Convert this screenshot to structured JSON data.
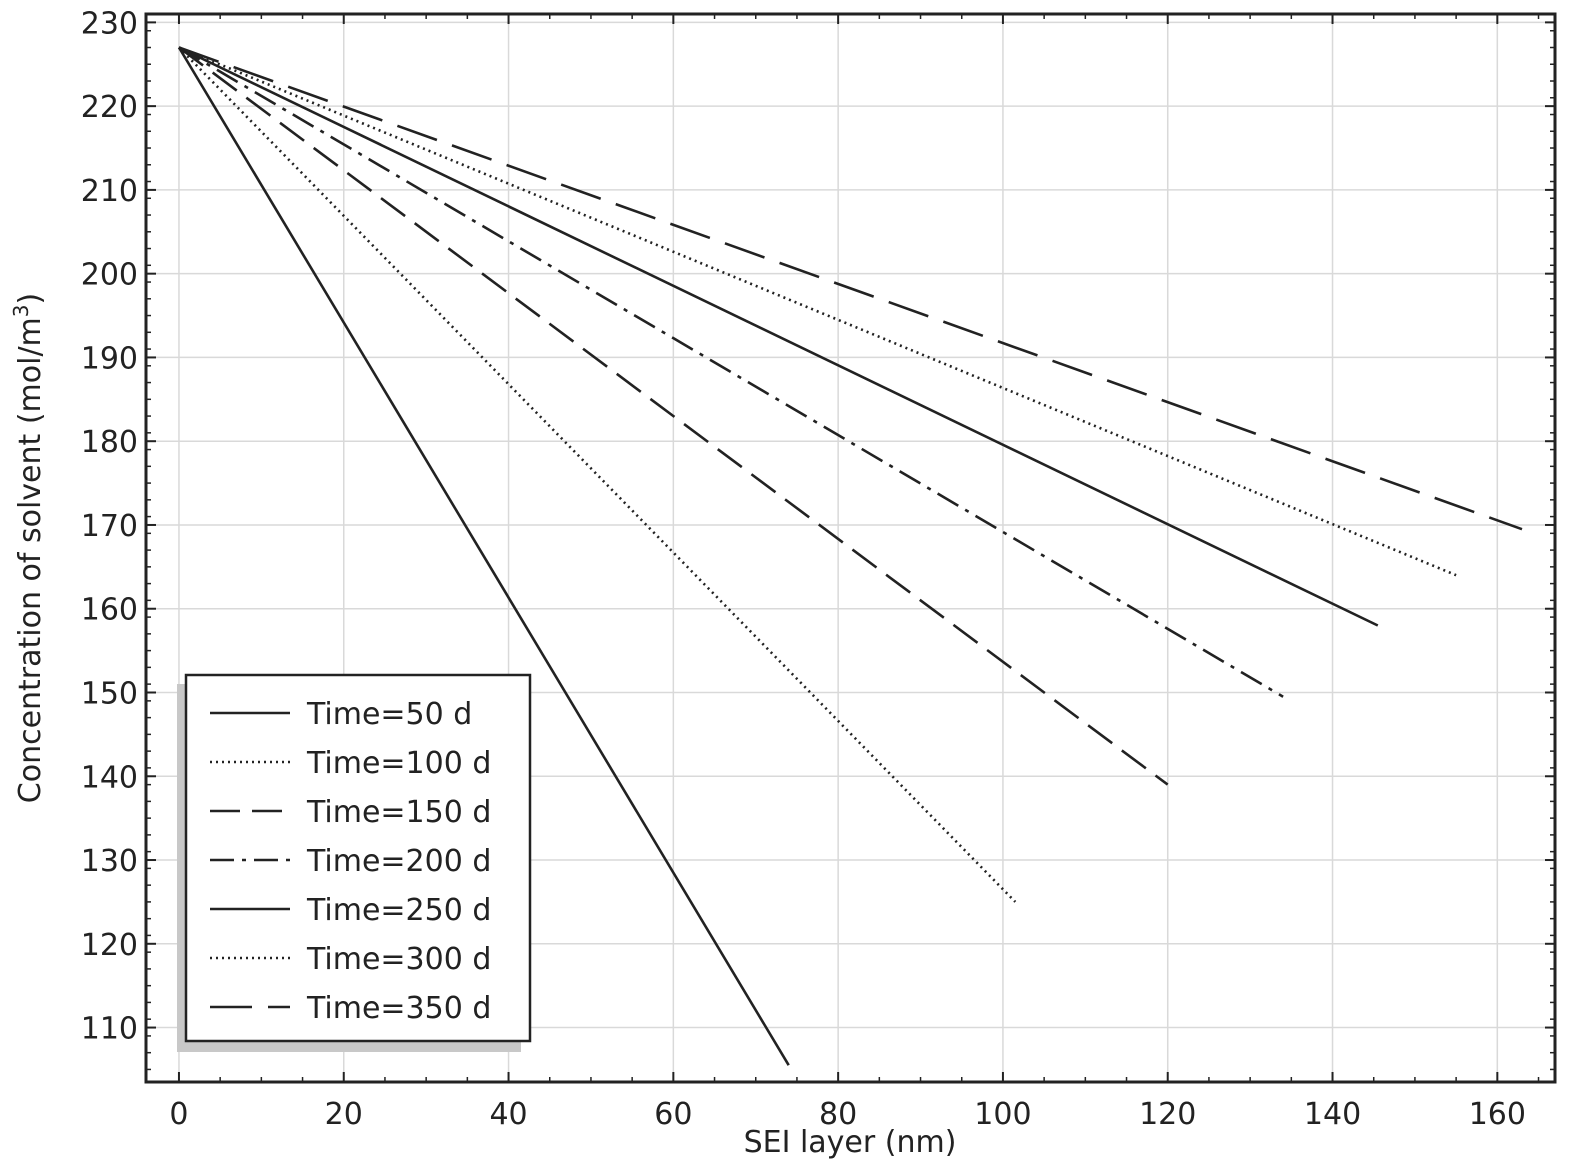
{
  "chart_data": {
    "type": "line",
    "title": "",
    "xlabel": "SEI layer (nm)",
    "ylabel": "Concentration of solvent (mol/m",
    "ylabel_superscript": "3",
    "ylabel_suffix": ")",
    "xlim": [
      -4,
      167
    ],
    "ylim": [
      103.5,
      231
    ],
    "xticks": [
      0,
      20,
      40,
      60,
      80,
      100,
      120,
      140,
      160
    ],
    "yticks": [
      110,
      120,
      130,
      140,
      150,
      160,
      170,
      180,
      190,
      200,
      210,
      220,
      230
    ],
    "grid": true,
    "legend_position": "bottom-left",
    "series": [
      {
        "name": "Time=50 d",
        "style": "solid",
        "x": [
          0,
          74
        ],
        "y": [
          227,
          105.5
        ]
      },
      {
        "name": "Time=100 d",
        "style": "dotted",
        "x": [
          0,
          101.5
        ],
        "y": [
          227,
          125
        ]
      },
      {
        "name": "Time=150 d",
        "style": "dashed",
        "x": [
          0,
          120
        ],
        "y": [
          227,
          139
        ]
      },
      {
        "name": "Time=200 d",
        "style": "dashdot",
        "x": [
          0,
          134
        ],
        "y": [
          227,
          149.5
        ]
      },
      {
        "name": "Time=250 d",
        "style": "solid",
        "x": [
          0,
          145.5
        ],
        "y": [
          227,
          158
        ]
      },
      {
        "name": "Time=300 d",
        "style": "dotted",
        "x": [
          0,
          155
        ],
        "y": [
          227,
          164
        ]
      },
      {
        "name": "Time=350 d",
        "style": "longdash",
        "x": [
          0,
          163
        ],
        "y": [
          227,
          169.5
        ]
      }
    ]
  }
}
